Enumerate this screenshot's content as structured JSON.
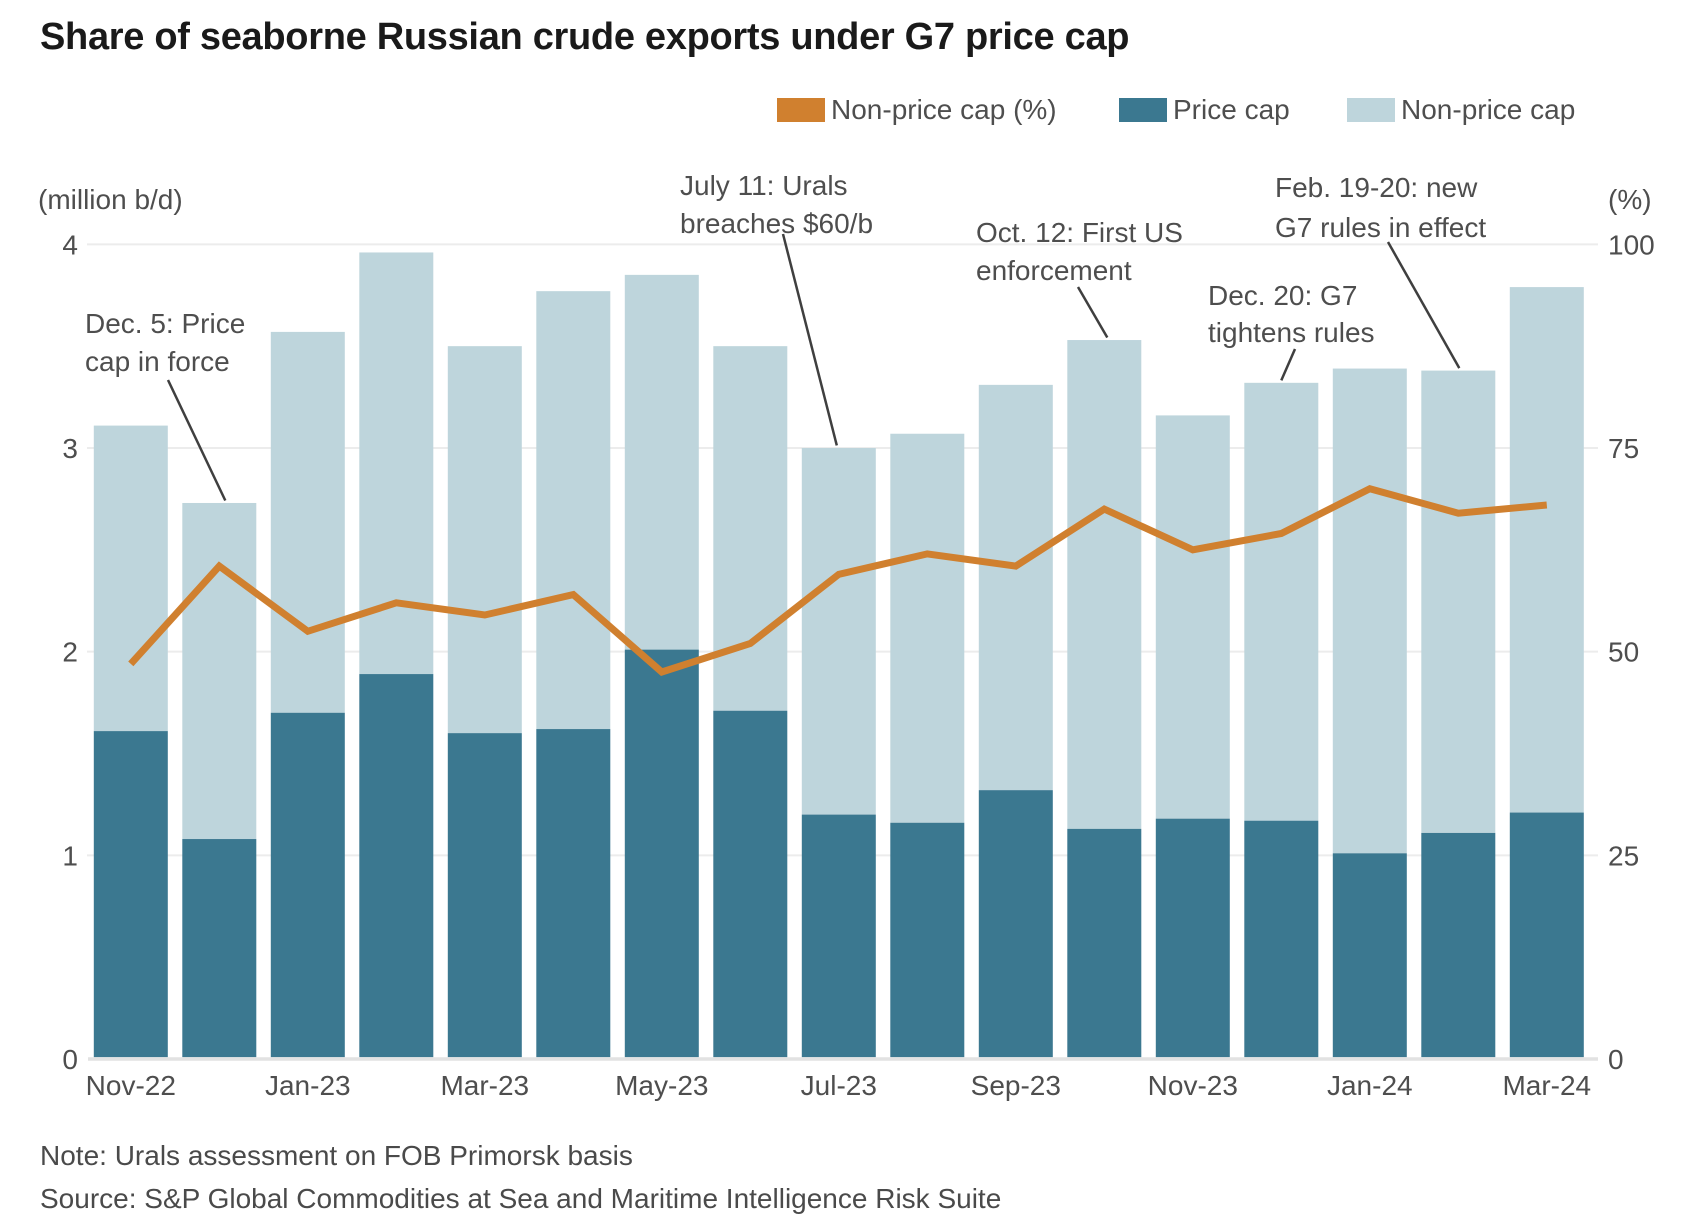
{
  "title": "Share of seaborne Russian crude exports under G7 price cap",
  "legend": {
    "items": [
      {
        "label": "Non-price cap (%)",
        "color": "#D0802F",
        "series_type": "line"
      },
      {
        "label": "Price cap",
        "color": "#3B7890",
        "series_type": "bar"
      },
      {
        "label": "Non-price cap",
        "color": "#BED5DC",
        "series_type": "bar"
      }
    ]
  },
  "axes": {
    "left_unit": "(million b/d)",
    "right_unit": "(%)",
    "left_tick_labels": [
      "0",
      "1",
      "2",
      "3",
      "4"
    ],
    "right_tick_labels": [
      "0",
      "25",
      "50",
      "75",
      "100"
    ]
  },
  "chart_data": {
    "type": "bar",
    "subtype": "stacked-bar-with-line-overlay",
    "title": "Share of seaborne Russian crude exports under G7 price cap",
    "categories": [
      "Nov-22",
      "Dec-22",
      "Jan-23",
      "Feb-23",
      "Mar-23",
      "Apr-23",
      "May-23",
      "Jun-23",
      "Jul-23",
      "Aug-23",
      "Sep-23",
      "Oct-23",
      "Nov-23",
      "Dec-23",
      "Jan-24",
      "Feb-24",
      "Mar-24"
    ],
    "x_tick_labels_shown": [
      "Nov-22",
      "Jan-23",
      "Mar-23",
      "May-23",
      "Jul-23",
      "Sep-23",
      "Nov-23",
      "Jan-24",
      "Mar-24"
    ],
    "series": [
      {
        "name": "Price cap",
        "type": "bar",
        "stack": "exports",
        "axis": "left",
        "unit": "million b/d",
        "color": "#3B7890",
        "values": [
          1.61,
          1.08,
          1.7,
          1.89,
          1.6,
          1.62,
          2.01,
          1.71,
          1.2,
          1.16,
          1.32,
          1.13,
          1.18,
          1.17,
          1.01,
          1.11,
          1.21
        ]
      },
      {
        "name": "Non-price cap",
        "type": "bar",
        "stack": "exports",
        "axis": "left",
        "unit": "million b/d",
        "color": "#BED5DC",
        "values": [
          1.5,
          1.65,
          1.87,
          2.07,
          1.9,
          2.15,
          1.84,
          1.79,
          1.8,
          1.91,
          1.99,
          2.4,
          1.98,
          2.15,
          2.38,
          2.27,
          2.58
        ]
      },
      {
        "name": "Non-price cap (%)",
        "type": "line",
        "axis": "right",
        "unit": "%",
        "color": "#D0802F",
        "values": [
          48.5,
          60.5,
          52.5,
          56,
          54.5,
          57,
          47.5,
          51,
          59.5,
          62,
          60.5,
          67.5,
          62.5,
          64.5,
          70,
          67,
          68
        ]
      }
    ],
    "xlabel": "",
    "ylabel_left": "(million b/d)",
    "ylabel_right": "(%)",
    "ylim_left": [
      0,
      4
    ],
    "ylim_right": [
      0,
      100
    ],
    "grid": "horizontal",
    "legend_position": "top-right"
  },
  "annotations": [
    {
      "lines": [
        "Dec. 5: Price",
        "cap in force"
      ],
      "points_to": "Dec-22"
    },
    {
      "lines": [
        "July 11: Urals",
        "breaches $60/b"
      ],
      "points_to": "Jul-23"
    },
    {
      "lines": [
        "Oct. 12: First US",
        "enforcement"
      ],
      "points_to": "Oct-23"
    },
    {
      "lines": [
        "Dec. 20: G7",
        "tightens rules"
      ],
      "points_to": "Dec-23"
    },
    {
      "lines": [
        "Feb. 19-20: new",
        "G7 rules in effect"
      ],
      "points_to": "Feb-24"
    }
  ],
  "footer": {
    "note": "Note: Urals assessment on FOB Primorsk basis",
    "source": "Source: S&P Global Commodities at Sea and Maritime Intelligence Risk Suite"
  },
  "colors": {
    "price_cap": "#3B7890",
    "non_price_cap": "#BED5DC",
    "pct_line": "#D0802F",
    "grid": "#ECECEC",
    "axis_line": "#E2E2E2",
    "leader": "#3F3F3F",
    "text_dark": "#1A1A1A",
    "text_gray": "#4E4E4E",
    "background": "#FFFFFF"
  }
}
